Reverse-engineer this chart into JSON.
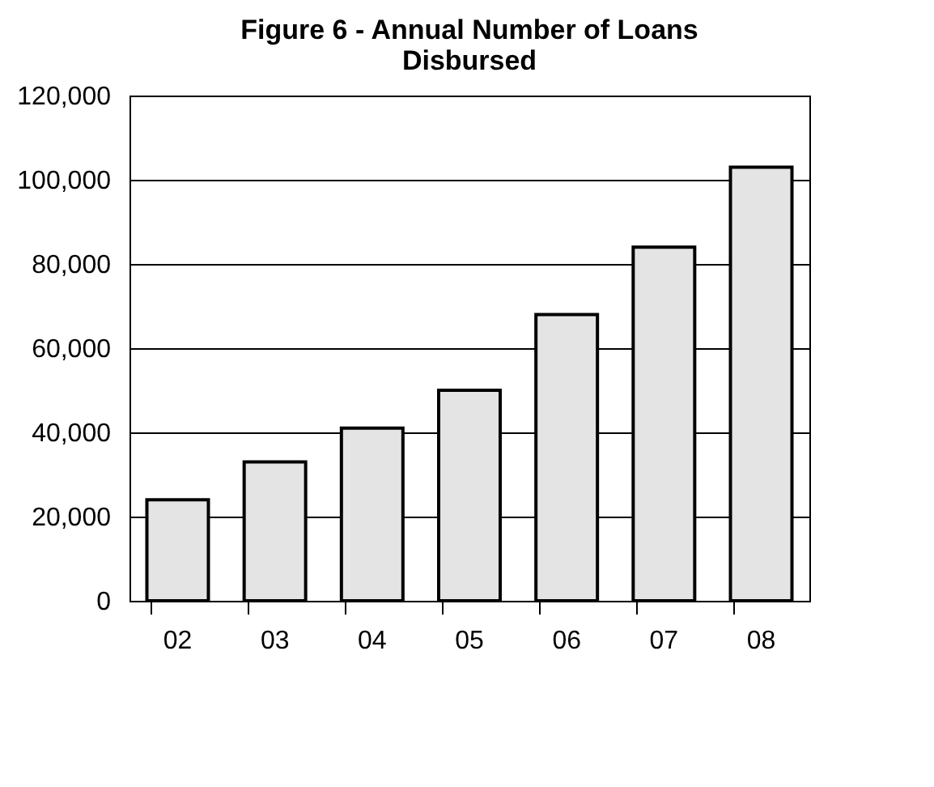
{
  "chart_data": {
    "type": "bar",
    "title": "Figure 6 - Annual Number of Loans Disbursed",
    "categories": [
      "02",
      "03",
      "04",
      "05",
      "06",
      "07",
      "08"
    ],
    "values": [
      24000,
      33000,
      41000,
      50000,
      68000,
      84000,
      103000
    ],
    "color": "#e4e4e4",
    "ylim": [
      0,
      120000
    ],
    "yticks": [
      0,
      {
        "value": 20000,
        "label": "20,000"
      },
      {
        "value": 40000,
        "label": "40,000"
      },
      {
        "value": 60000,
        "label": "60,000"
      },
      {
        "value": 80000,
        "label": "80,000"
      },
      {
        "value": 100000,
        "label": "100,000"
      },
      {
        "value": 120000,
        "label": "120,000"
      }
    ],
    "grid": "y"
  }
}
